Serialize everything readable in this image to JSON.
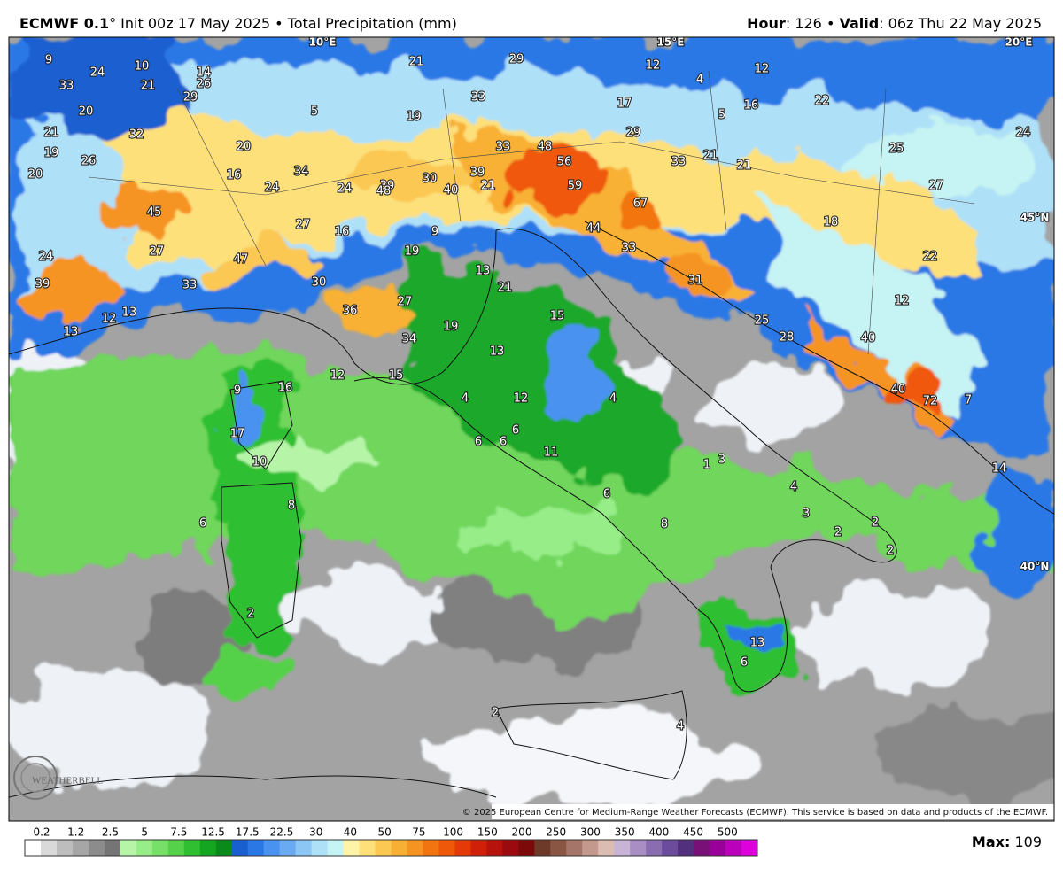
{
  "header": {
    "model": "ECMWF 0.1",
    "init": "° Init 00z 17 May 2025",
    "separator": "•",
    "product": "Total Precipitation (mm)",
    "hour_label": "Hour",
    "hour": ": 126",
    "valid_label": "Valid",
    "valid": ": 06z Thu 22 May 2025"
  },
  "map": {
    "geo_labels": [
      "10°E",
      "15°E",
      "20°E",
      "45°N",
      "40°N"
    ],
    "labels": [
      9,
      10,
      24,
      14,
      33,
      21,
      26,
      29,
      21,
      29,
      12,
      12,
      4,
      33,
      5,
      19,
      17,
      16,
      5,
      22,
      20,
      32,
      21,
      29,
      24,
      33,
      48,
      20,
      19,
      26,
      56,
      25,
      33,
      21,
      21,
      20,
      16,
      34,
      30,
      39,
      39,
      59,
      24,
      48,
      40,
      21,
      24,
      27,
      45,
      67,
      18,
      27,
      44,
      16,
      9,
      27,
      24,
      33,
      19,
      22,
      47,
      13,
      31,
      30,
      33,
      39,
      21,
      12,
      27,
      13,
      12,
      36,
      15,
      25,
      19,
      13,
      34,
      40,
      28,
      13,
      16,
      12,
      15,
      9,
      40,
      72,
      4,
      12,
      4,
      7,
      6,
      17,
      6,
      6,
      11,
      10,
      1,
      3,
      14,
      4,
      6,
      8,
      6,
      8,
      3,
      2,
      2,
      2,
      2,
      13,
      6,
      2,
      4
    ]
  },
  "legend": {
    "ticks": [
      0.2,
      1.2,
      2.5,
      5,
      7.5,
      12.5,
      17.5,
      22.5,
      30,
      40,
      50,
      75,
      100,
      150,
      200,
      250,
      300,
      350,
      400,
      450,
      500
    ],
    "colors": [
      "#ffffff",
      "#d9d9d9",
      "#bdbdbd",
      "#a6a6a6",
      "#8c8c8c",
      "#757575",
      "#b6f5a8",
      "#97ed88",
      "#77e068",
      "#55d14a",
      "#2fbf30",
      "#15a621",
      "#0a8a1a",
      "#1a5fd0",
      "#2a78e6",
      "#4a92f0",
      "#6aaaf2",
      "#8cc6f5",
      "#aee0f8",
      "#c6f3f3",
      "#fff3a8",
      "#fde07a",
      "#fbc852",
      "#f8b034",
      "#f59420",
      "#f27410",
      "#ef5808",
      "#e43a08",
      "#d0200a",
      "#b8120c",
      "#9a0a0e",
      "#7d0a0a",
      "#6d3a2a",
      "#8a5644",
      "#a6756a",
      "#c2998c",
      "#dbbcb2",
      "#c8b4d6",
      "#a98ec4",
      "#8a6cb0",
      "#6b4c9c",
      "#52307e",
      "#781078",
      "#990099",
      "#bb00bb",
      "#dd00dd"
    ]
  },
  "max_label": "Max:",
  "max_value": 109,
  "copyright": "© 2025 European Centre for Medium-Range Weather Forecasts (ECMWF). This service is based on data and products of the ECMWF.",
  "logo": "WEATHERBELL"
}
